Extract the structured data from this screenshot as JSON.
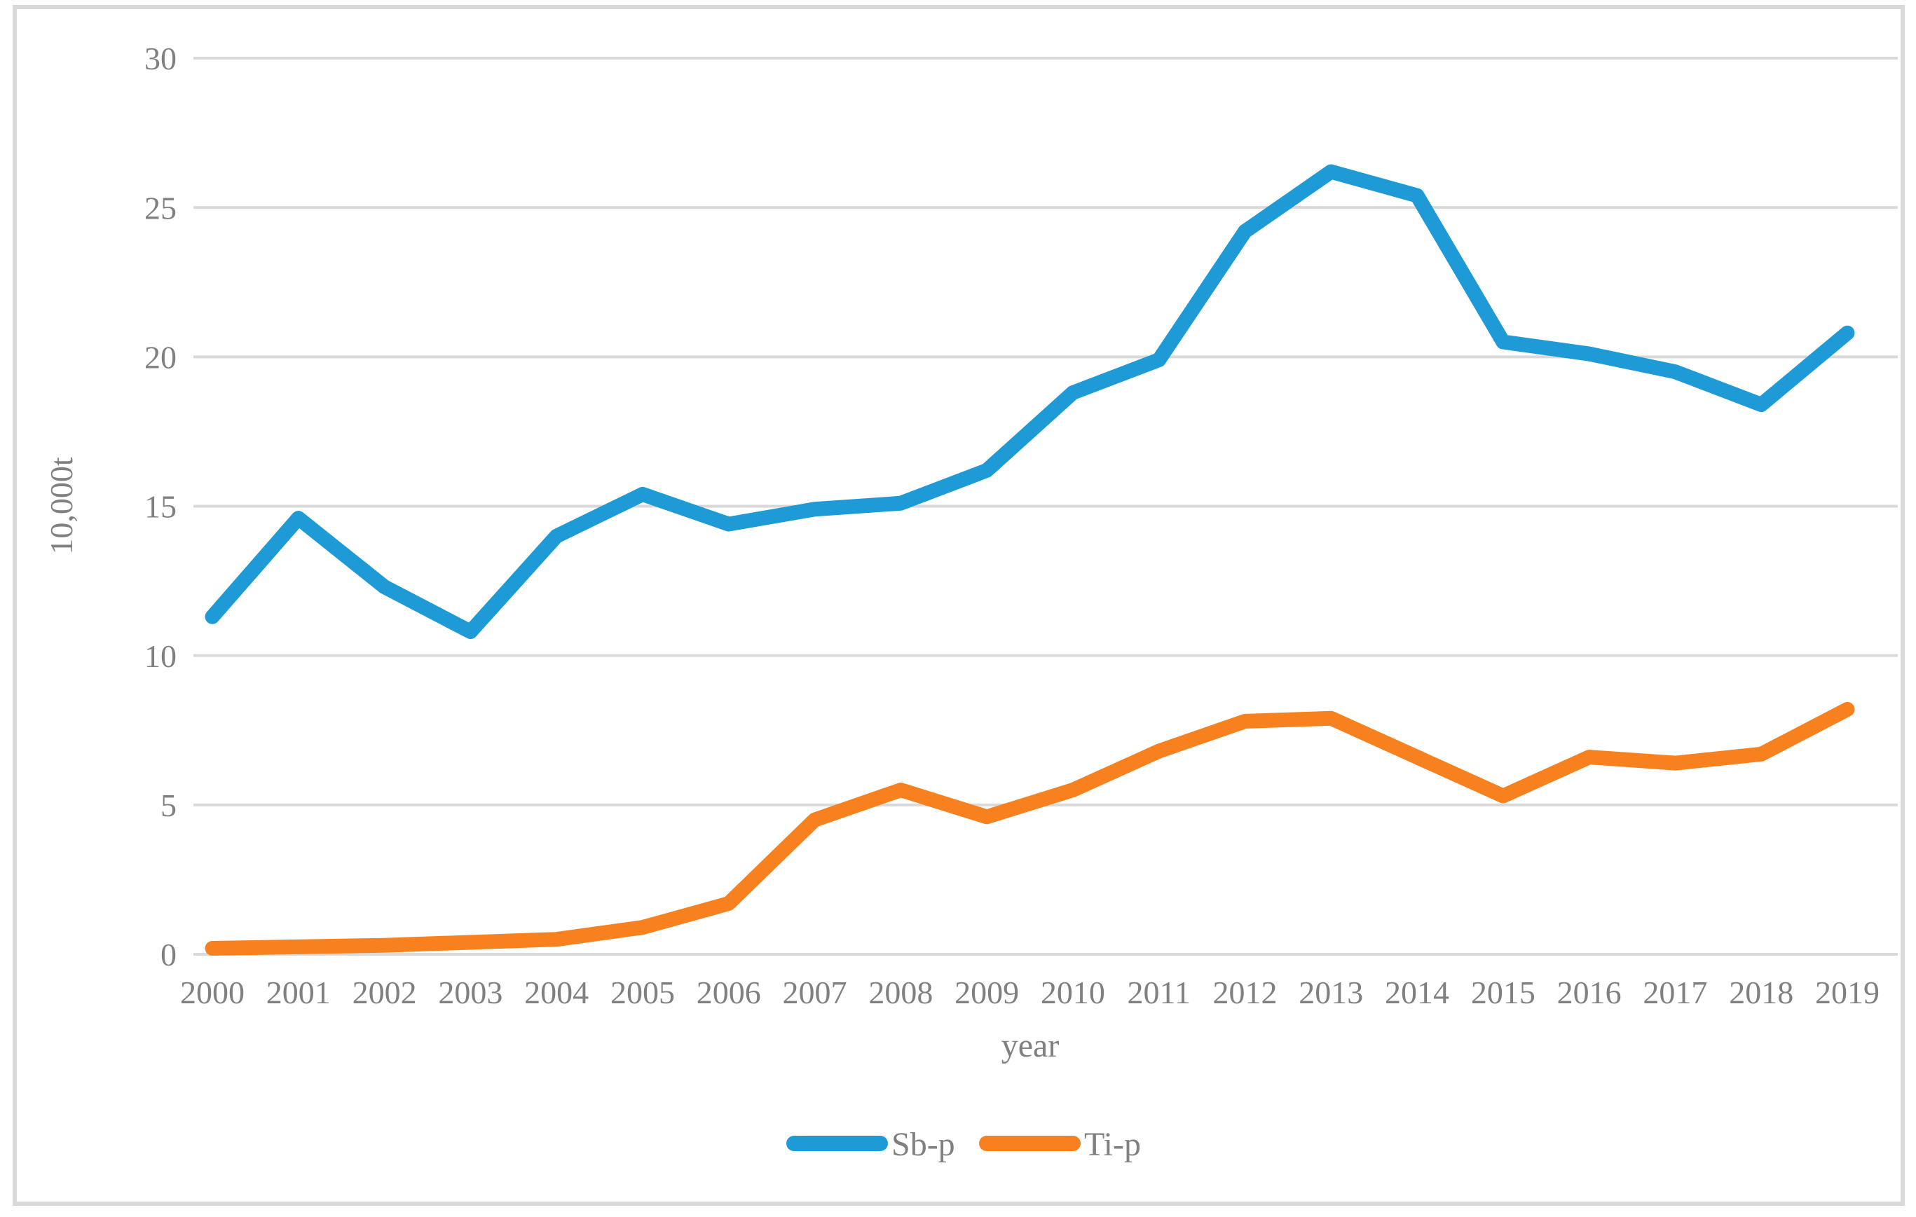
{
  "figure": {
    "background_color": "#FFFFFF",
    "border_color": "#D9D9D9",
    "text_color": "#808080"
  },
  "chart_data": {
    "type": "line",
    "title": "",
    "xlabel": "year",
    "ylabel": "10,000t",
    "x": [
      2000,
      2001,
      2002,
      2003,
      2004,
      2005,
      2006,
      2007,
      2008,
      2009,
      2010,
      2011,
      2012,
      2013,
      2014,
      2015,
      2016,
      2017,
      2018,
      2019
    ],
    "series": [
      {
        "name": "Sb-p",
        "color": "#1E9BD7",
        "values": [
          11.3,
          14.6,
          12.3,
          10.8,
          14.0,
          15.4,
          14.4,
          14.9,
          15.1,
          16.2,
          18.8,
          19.9,
          24.2,
          26.2,
          25.4,
          20.5,
          20.1,
          19.5,
          18.4,
          20.8
        ]
      },
      {
        "name": "Ti-p",
        "color": "#F8811F",
        "values": [
          0.2,
          0.25,
          0.3,
          0.4,
          0.5,
          0.9,
          1.7,
          4.5,
          5.5,
          4.6,
          5.5,
          6.8,
          7.8,
          7.9,
          6.6,
          5.3,
          6.6,
          6.4,
          6.7,
          8.2
        ]
      }
    ],
    "ylim": [
      0,
      30
    ],
    "yticks": [
      0,
      5,
      10,
      15,
      20,
      25,
      30
    ],
    "grid": "horizontal",
    "gridline_color": "#D9D9D9",
    "tick_label_color": "#808080",
    "legend_position": "bottom",
    "legend_labels": [
      "Sb-p",
      "Ti-p"
    ]
  }
}
